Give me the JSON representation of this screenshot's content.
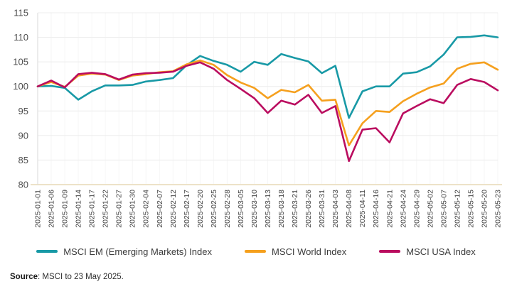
{
  "chart_data": {
    "type": "line",
    "title": "",
    "xlabel": "",
    "ylabel": "",
    "ylim": [
      80,
      115
    ],
    "y_ticks": [
      115,
      110,
      105,
      100,
      95,
      90,
      85,
      80
    ],
    "grid": true,
    "legend_position": "bottom",
    "x": [
      "2025-01-01",
      "2025-01-06",
      "2025-01-09",
      "2025-01-14",
      "2025-01-17",
      "2025-01-22",
      "2025-01-27",
      "2025-01-30",
      "2025-02-04",
      "2025-02-07",
      "2025-02-12",
      "2025-02-17",
      "2025-02-20",
      "2025-02-25",
      "2025-02-28",
      "2025-03-05",
      "2025-03-10",
      "2025-03-13",
      "2025-03-18",
      "2025-03-21",
      "2025-03-26",
      "2025-03-31",
      "2025-04-03",
      "2025-04-08",
      "2025-04-11",
      "2025-04-16",
      "2025-04-21",
      "2025-04-24",
      "2025-04-29",
      "2025-05-02",
      "2025-05-07",
      "2025-05-12",
      "2025-05-15",
      "2025-05-20",
      "2025-05-23"
    ],
    "series": [
      {
        "name": "MSCI EM (Emerging Markets) Index",
        "color": "#1899A6",
        "values": [
          100.0,
          100.1,
          99.7,
          97.3,
          99.0,
          100.2,
          100.2,
          100.3,
          101.0,
          101.3,
          101.7,
          104.3,
          106.2,
          105.2,
          104.4,
          103.0,
          105.0,
          104.4,
          106.6,
          105.8,
          105.1,
          102.7,
          104.2,
          93.6,
          99.0,
          100.0,
          100.0,
          102.6,
          102.9,
          104.1,
          106.5,
          110.0,
          110.1,
          110.4,
          110.0
        ]
      },
      {
        "name": "MSCI World Index",
        "color": "#F5A01E",
        "values": [
          100.0,
          100.9,
          99.9,
          102.2,
          102.6,
          102.4,
          101.3,
          102.2,
          102.5,
          102.9,
          103.1,
          104.5,
          105.3,
          104.4,
          102.3,
          100.8,
          99.7,
          97.6,
          99.3,
          98.8,
          100.3,
          97.1,
          97.3,
          88.0,
          92.5,
          95.0,
          94.8,
          97.0,
          98.5,
          99.8,
          100.6,
          103.6,
          104.6,
          104.9,
          103.4
        ]
      },
      {
        "name": "MSCI USA Index",
        "color": "#BA0C5F",
        "values": [
          100.0,
          101.2,
          99.8,
          102.5,
          102.8,
          102.5,
          101.4,
          102.4,
          102.7,
          102.8,
          103.0,
          104.2,
          104.9,
          103.6,
          101.3,
          99.5,
          97.6,
          94.6,
          97.1,
          96.3,
          98.3,
          94.6,
          96.0,
          84.8,
          91.2,
          91.5,
          88.6,
          94.5,
          96.0,
          97.4,
          96.6,
          100.3,
          101.5,
          100.9,
          99.2
        ]
      }
    ],
    "colors": {
      "axis_baseline": "#EDE2C8",
      "gridline": "#ECECEC",
      "vertical_gridline": "#F6F6F6",
      "left_border": "#DADADA",
      "y_tick_text": "#4d4d4d",
      "x_tick_text": "#434343"
    }
  },
  "source": {
    "label": "Source",
    "text": ": MSCI to 23 May 2025."
  }
}
